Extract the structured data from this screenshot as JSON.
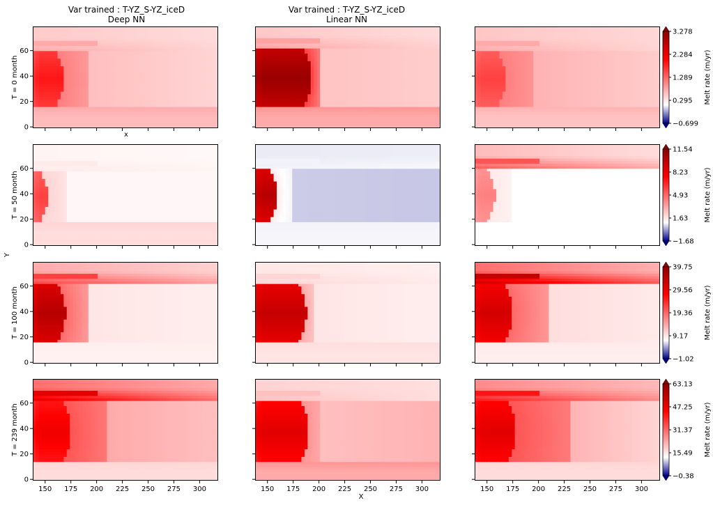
{
  "chart_data": {
    "type": "heatmap",
    "columns": [
      {
        "title_line1": "Var trained : T-YZ_S-YZ_iceD",
        "title_line2": "Deep NN"
      },
      {
        "title_line1": "Var trained : T-YZ_S-YZ_iceD",
        "title_line2": "Linear NN"
      },
      {
        "title_line1": "",
        "title_line2": ""
      }
    ],
    "rows": [
      {
        "label": "T = 0 month",
        "colorbar": {
          "label": "Melt rate (m/yr)",
          "ticks": [
            "3.278",
            "2.284",
            "1.289",
            "0.295",
            "−0.699"
          ],
          "vmin": -0.699,
          "vmax": 3.278
        }
      },
      {
        "label": "T = 50 month",
        "colorbar": {
          "label": "Melt rate (m/yr)",
          "ticks": [
            "11.54",
            "8.23",
            "4.93",
            "1.63",
            "−1.68"
          ],
          "vmin": -1.68,
          "vmax": 11.54
        }
      },
      {
        "label": "T = 100 month",
        "colorbar": {
          "label": "Melt rate (m/yr)",
          "ticks": [
            "39.75",
            "29.56",
            "19.36",
            "9.17",
            "−1.02"
          ],
          "vmin": -1.02,
          "vmax": 39.75
        }
      },
      {
        "label": "T = 239 month",
        "colorbar": {
          "label": "Melt rate (m/yr)",
          "ticks": [
            "63.13",
            "47.25",
            "31.37",
            "15.49",
            "−0.38"
          ],
          "vmin": -0.38,
          "vmax": 63.13
        }
      }
    ],
    "x_ticks": [
      150,
      175,
      200,
      225,
      250,
      275,
      300
    ],
    "y_ticks": [
      0,
      20,
      40,
      60
    ],
    "xlim": [
      138,
      318
    ],
    "ylim": [
      -1,
      79
    ],
    "first_panel_xlabel": "x",
    "shared_xlabel": "X",
    "shared_ylabel": "Y",
    "colormap": [
      "#00008b",
      "#ffffff",
      "#ff0000",
      "#8b0000"
    ],
    "panels": [
      [
        {
          "core": 0.55,
          "core_x_end": 168,
          "core_y": [
            16,
            60
          ],
          "shelf": 0.3,
          "shelf_x_end": 193,
          "body": 0.15,
          "far": 0.1,
          "edge_top": 0.2,
          "edge_bot": 0.2,
          "neg": 0.0
        },
        {
          "core": 0.95,
          "core_x_end": 193,
          "core_y": [
            16,
            62
          ],
          "shelf": 0.45,
          "shelf_x_end": 200,
          "body": 0.14,
          "far": 0.12,
          "edge_top": 0.22,
          "edge_bot": 0.25,
          "neg": 0.0
        },
        {
          "core": 0.45,
          "core_x_end": 168,
          "core_y": [
            16,
            60
          ],
          "shelf": 0.3,
          "shelf_x_end": 195,
          "body": 0.18,
          "far": 0.12,
          "edge_top": 0.2,
          "edge_bot": 0.18,
          "neg": 0.0
        }
      ],
      [
        {
          "core": 0.45,
          "core_x_end": 153,
          "core_y": [
            18,
            58
          ],
          "shelf": 0.1,
          "shelf_x_end": 170,
          "body": 0.02,
          "far": 0.02,
          "edge_top": 0.05,
          "edge_bot": 0.1,
          "neg": 0.0
        },
        {
          "core": 0.85,
          "core_x_end": 160,
          "core_y": [
            18,
            60
          ],
          "shelf": 0.05,
          "shelf_x_end": 175,
          "body": -0.2,
          "far": -0.22,
          "edge_top": -0.05,
          "edge_bot": -0.05,
          "neg": 0.0
        },
        {
          "core": 0.3,
          "core_x_end": 158,
          "core_y": [
            18,
            60
          ],
          "shelf": 0.05,
          "shelf_x_end": 175,
          "body": 0.0,
          "far": 0.0,
          "edge_top": 0.4,
          "edge_bot": 0.0,
          "neg": 0.0
        }
      ],
      [
        {
          "core": 0.85,
          "core_x_end": 170,
          "core_y": [
            16,
            62
          ],
          "shelf": 0.35,
          "shelf_x_end": 193,
          "body": 0.06,
          "far": 0.04,
          "edge_top": 0.45,
          "edge_bot": 0.04,
          "neg": 0.0
        },
        {
          "core": 0.8,
          "core_x_end": 188,
          "core_y": [
            16,
            62
          ],
          "shelf": 0.2,
          "shelf_x_end": 195,
          "body": 0.06,
          "far": 0.04,
          "edge_top": 0.1,
          "edge_bot": 0.08,
          "neg": 0.0
        },
        {
          "core": 0.75,
          "core_x_end": 175,
          "core_y": [
            16,
            62
          ],
          "shelf": 0.35,
          "shelf_x_end": 210,
          "body": 0.08,
          "far": 0.05,
          "edge_top": 0.8,
          "edge_bot": 0.05,
          "neg": 0.0
        }
      ],
      [
        {
          "core": 0.65,
          "core_x_end": 175,
          "core_y": [
            14,
            62
          ],
          "shelf": 0.4,
          "shelf_x_end": 210,
          "body": 0.2,
          "far": 0.15,
          "edge_top": 0.7,
          "edge_bot": 0.1,
          "neg": 0.0
        },
        {
          "core": 0.7,
          "core_x_end": 190,
          "core_y": [
            14,
            62
          ],
          "shelf": 0.25,
          "shelf_x_end": 200,
          "body": 0.15,
          "far": 0.18,
          "edge_top": 0.15,
          "edge_bot": 0.25,
          "neg": 0.0
        },
        {
          "core": 0.7,
          "core_x_end": 178,
          "core_y": [
            14,
            62
          ],
          "shelf": 0.4,
          "shelf_x_end": 230,
          "body": 0.18,
          "far": 0.1,
          "edge_top": 0.55,
          "edge_bot": 0.1,
          "neg": 0.0
        }
      ]
    ]
  }
}
